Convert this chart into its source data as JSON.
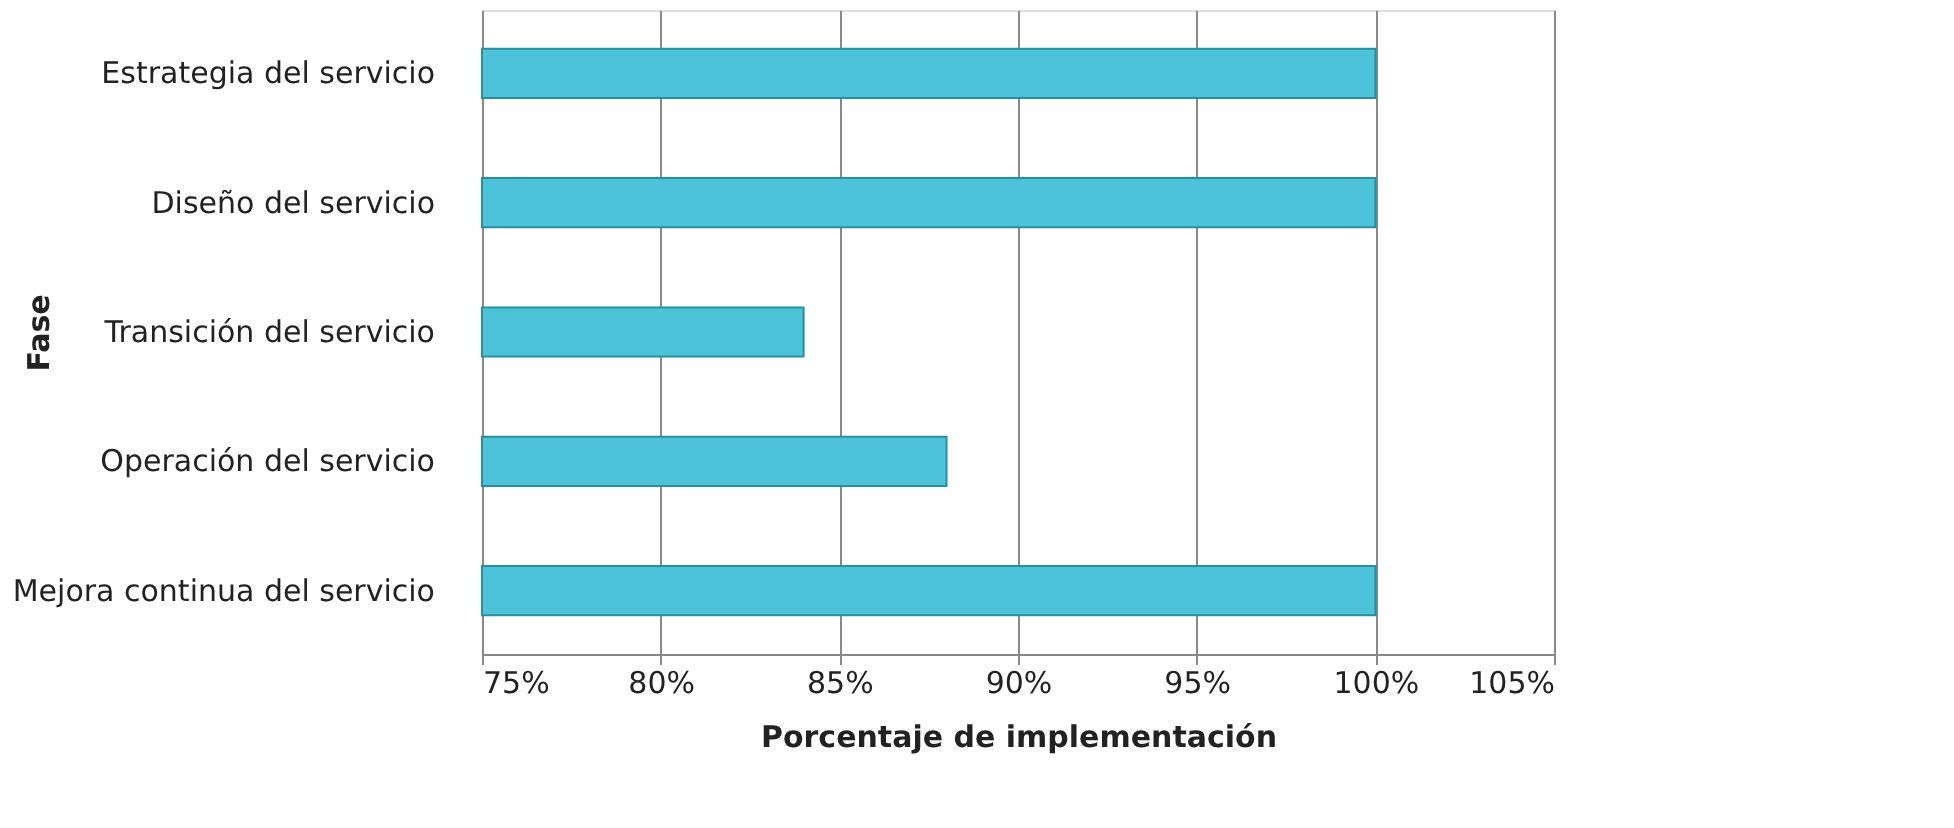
{
  "chart_data": {
    "type": "bar",
    "orientation": "horizontal",
    "xlabel": "Porcentaje de implementación",
    "ylabel": "Fase",
    "categories": [
      "Estrategia del servicio",
      "Diseño del servicio",
      "Transición del servicio",
      "Operación del servicio",
      "Mejora continua del servicio"
    ],
    "values": [
      100,
      100,
      84,
      88,
      100
    ],
    "color": "#4cc3d9",
    "xlim": [
      75,
      105
    ],
    "xticks": [
      {
        "value": 75,
        "label": "75%"
      },
      {
        "value": 80,
        "label": "80%"
      },
      {
        "value": 85,
        "label": "85%"
      },
      {
        "value": 90,
        "label": "90%"
      },
      {
        "value": 95,
        "label": "95%"
      },
      {
        "value": 100,
        "label": "100%"
      },
      {
        "value": 105,
        "label": "105%"
      }
    ],
    "grid": "x"
  }
}
